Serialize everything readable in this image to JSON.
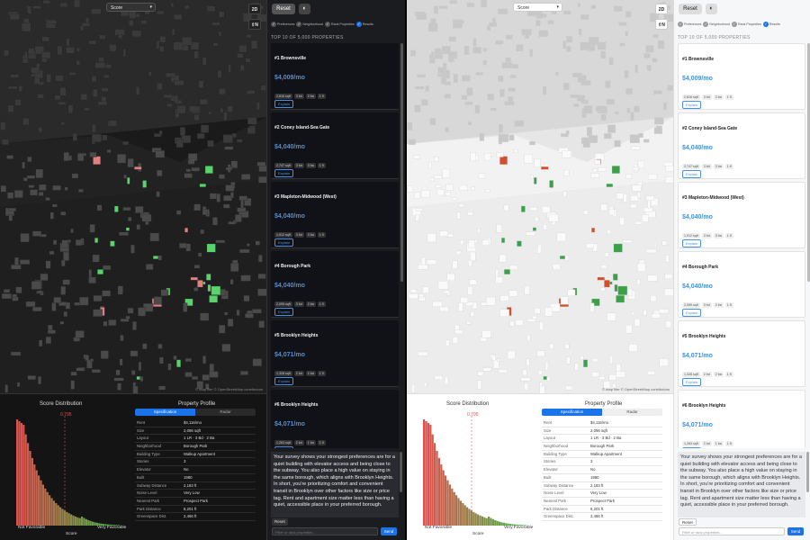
{
  "map": {
    "score_select": "Score",
    "btn_2d": "2D",
    "btn_north": "⇧N",
    "attribution": "© MapTiler © OpenStreetMap contributors"
  },
  "panel": {
    "reset_label": "Reset",
    "theme_icon": "half-circle-icon",
    "steps": [
      "Preferences",
      "Neighborhood",
      "Rank Properties",
      "Results"
    ],
    "top_header": "TOP 10 OF 5,000 PROPERTIES",
    "explain_label": "Explain",
    "results": [
      {
        "name": "#1 Brownsville",
        "price": "$4,009/mo",
        "tags": [
          "2,816 sqft",
          "3 bd",
          "2 ba",
          "1 fl"
        ]
      },
      {
        "name": "#2 Coney Island-Sea Gate",
        "price": "$4,040/mo",
        "tags": [
          "2,747 sqft",
          "3 bd",
          "3 ba",
          "1 fl"
        ]
      },
      {
        "name": "#3 Mapleton-Midwood (West)",
        "price": "$4,040/mo",
        "tags": [
          "1,912 sqft",
          "3 bd",
          "3 ba",
          "1 fl"
        ]
      },
      {
        "name": "#4 Borough Park",
        "price": "$4,040/mo",
        "tags": [
          "2,095 sqft",
          "3 bd",
          "2 ba",
          "1 fl"
        ]
      },
      {
        "name": "#5 Brooklyn Heights",
        "price": "$4,071/mo",
        "tags": [
          "1,328 sqft",
          "2 bd",
          "2 ba",
          "1 fl"
        ]
      },
      {
        "name": "#6 Brooklyn Heights",
        "price": "$4,071/mo",
        "tags": [
          "1,263 sqft",
          "2 bd",
          "1 ba",
          "1 fl"
        ]
      }
    ],
    "chat_text": "Your survey shows your strongest preferences are for a quiet building with elevator access and being close to the subway. You also place a high value on staying in the same borough, which aligns with Brooklyn Heights. In short, you're prioritizing comfort and convenient transit in Brooklyn over other factors like size or price tag. Rent and apartment size matter less than having a quiet, accessible place in your preferred borough.",
    "small_reset": "Reset",
    "filter_placeholder": "Filter or rank properties...",
    "send_label": "Send"
  },
  "score_distribution": {
    "title": "Score Distribution",
    "marker_value": "0.795",
    "left_label": "Not Favorable",
    "right_label": "Very Favorable",
    "axis_label": "Score"
  },
  "profile": {
    "title": "Property Profile",
    "tabs": [
      "Specification",
      "Radar"
    ],
    "rows": [
      {
        "k": "Rent",
        "v": "$4,116/mo"
      },
      {
        "k": "Size",
        "v": "2,096 sqft"
      },
      {
        "k": "Layout",
        "v": "1 LR · 3 Bd · 2 Ba"
      },
      {
        "k": "Neighborhood",
        "v": "Borough Park"
      },
      {
        "k": "Building Type",
        "v": "Walkup Apartment"
      },
      {
        "k": "Stories",
        "v": "3"
      },
      {
        "k": "Elevator",
        "v": "No"
      },
      {
        "k": "Built",
        "v": "1980"
      },
      {
        "k": "Subway Distance",
        "v": "2,183 ft"
      },
      {
        "k": "Noise Level",
        "v": "Very Low"
      },
      {
        "k": "Nearest Park",
        "v": "Prospect Park"
      },
      {
        "k": "Park Distance",
        "v": "8,201 ft"
      },
      {
        "k": "Greenspace Dist.",
        "v": "2,466 ft"
      }
    ]
  },
  "colors": {
    "accent": "#1a73e8",
    "price": "#4a90e2",
    "good": "#4caf50",
    "bad": "#e05050"
  }
}
